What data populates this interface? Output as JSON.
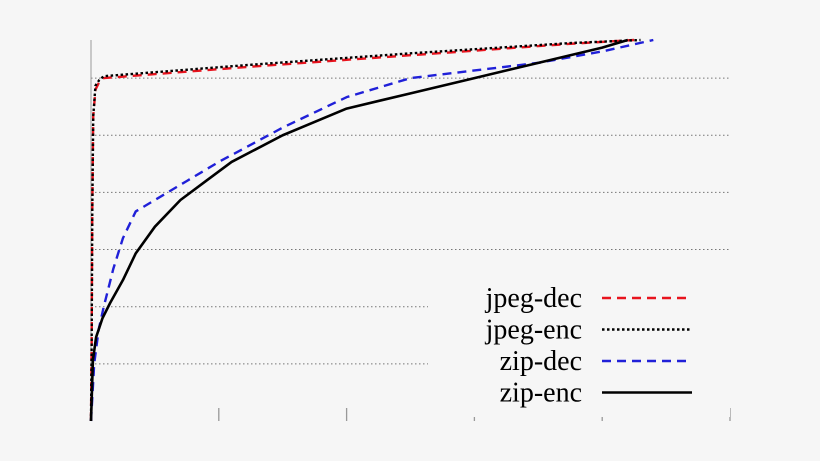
{
  "chart_data": {
    "type": "line",
    "title": "",
    "xlabel": "",
    "ylabel": "",
    "xlim": [
      0,
      100
    ],
    "ylim": [
      0,
      100
    ],
    "x_ticks": [
      0,
      20,
      40,
      60,
      80,
      100
    ],
    "y_gridlines": [
      15,
      30,
      45,
      60,
      75,
      90
    ],
    "grid": "horizontal dotted",
    "legend_position": "bottom-right",
    "series": [
      {
        "name": "jpeg-dec",
        "color": "#e8141e",
        "style": "dashed",
        "points": [
          [
            0,
            0
          ],
          [
            0.1,
            20
          ],
          [
            0.2,
            55
          ],
          [
            0.35,
            80
          ],
          [
            0.7,
            87
          ],
          [
            1.3,
            89
          ],
          [
            2,
            90
          ],
          [
            25,
            93
          ],
          [
            50,
            96
          ],
          [
            75,
            99
          ],
          [
            85,
            100
          ]
        ]
      },
      {
        "name": "jpeg-enc",
        "color": "#000000",
        "style": "dotted",
        "points": [
          [
            0,
            0
          ],
          [
            0.1,
            20
          ],
          [
            0.2,
            55
          ],
          [
            0.35,
            80
          ],
          [
            0.7,
            88
          ],
          [
            1.3,
            89.5
          ],
          [
            2,
            90.5
          ],
          [
            25,
            93.5
          ],
          [
            50,
            96.5
          ],
          [
            75,
            99.2
          ],
          [
            86,
            100
          ]
        ]
      },
      {
        "name": "zip-dec",
        "color": "#2020d8",
        "style": "dashed",
        "points": [
          [
            0,
            0
          ],
          [
            0.5,
            15
          ],
          [
            1.2,
            24
          ],
          [
            2,
            30
          ],
          [
            3.5,
            40
          ],
          [
            5,
            48
          ],
          [
            7,
            55
          ],
          [
            10,
            58
          ],
          [
            15,
            63
          ],
          [
            20,
            68
          ],
          [
            30,
            77
          ],
          [
            40,
            85
          ],
          [
            50,
            90
          ],
          [
            60,
            92
          ],
          [
            70,
            94
          ],
          [
            80,
            97
          ],
          [
            88,
            100
          ]
        ]
      },
      {
        "name": "zip-enc",
        "color": "#000000",
        "style": "solid",
        "points": [
          [
            0,
            0
          ],
          [
            0.3,
            16
          ],
          [
            0.8,
            22
          ],
          [
            1.8,
            27
          ],
          [
            3,
            31
          ],
          [
            5,
            37
          ],
          [
            7,
            44
          ],
          [
            10,
            51
          ],
          [
            14,
            58
          ],
          [
            18,
            63
          ],
          [
            22,
            68
          ],
          [
            30,
            75
          ],
          [
            40,
            82
          ],
          [
            50,
            86
          ],
          [
            60,
            90
          ],
          [
            70,
            94
          ],
          [
            80,
            98
          ],
          [
            84,
            100
          ]
        ]
      }
    ]
  }
}
